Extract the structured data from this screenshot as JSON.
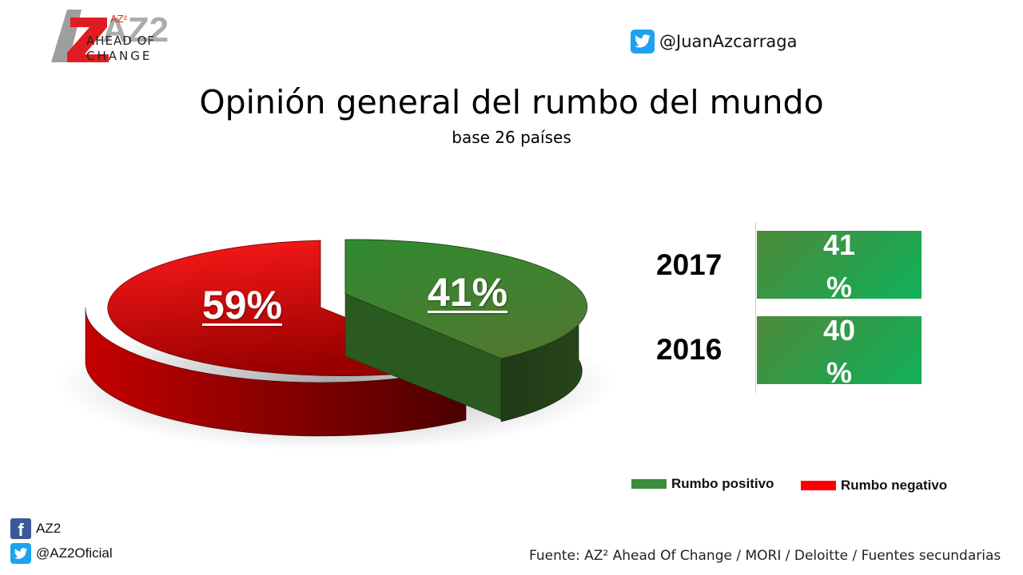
{
  "brand": {
    "logo_text": "AZ2",
    "sup_text": "AZ²",
    "line1": "AHEAD OF",
    "line2": "CHANGE",
    "colors": {
      "red": "#e11b22",
      "gray": "#9e9e9e"
    }
  },
  "twitter_top": {
    "icon": "twitter-icon",
    "handle": "@JuanAzcarraga"
  },
  "chart_data": {
    "type": "pie",
    "title": "Opinión general del rumbo del mundo",
    "subtitle": "base 26 países",
    "slices": [
      {
        "name": "Rumbo positivo",
        "value": 41,
        "label": "41%",
        "color": "#3c8d3a"
      },
      {
        "name": "Rumbo negativo",
        "value": 59,
        "label": "59%",
        "color": "#d40000"
      }
    ],
    "comparison": [
      {
        "year": "2017",
        "value": 41,
        "number": "41",
        "unit": "%"
      },
      {
        "year": "2016",
        "value": 40,
        "number": "40",
        "unit": "%"
      }
    ],
    "legend": {
      "placement": "bottom-right",
      "items": [
        {
          "label": "Rumbo positivo",
          "color": "#3c8d3a"
        },
        {
          "label": "Rumbo negativo",
          "color": "#ff0000"
        }
      ]
    }
  },
  "social": {
    "facebook": {
      "icon": "facebook-icon",
      "label": "AZ2"
    },
    "twitter": {
      "icon": "twitter-icon",
      "label": "@AZ2Oficial"
    }
  },
  "source": "Fuente: AZ² Ahead Of Change / MORI / Deloitte / Fuentes secundarias"
}
